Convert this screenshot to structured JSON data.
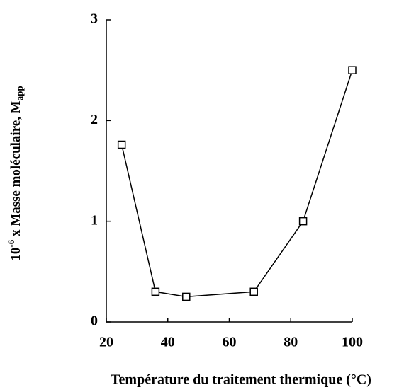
{
  "chart_data": {
    "type": "line",
    "x_label": "Température du traitement thermique (°C)",
    "y_label": [
      "10",
      "-6",
      " x Masse moléculaire, M",
      "app"
    ],
    "x": [
      25,
      36,
      46,
      68,
      84,
      100
    ],
    "series": [
      {
        "values": [
          1.76,
          0.3,
          0.25,
          0.3,
          1.0,
          2.5
        ],
        "color": "#000000"
      }
    ],
    "xlim": [
      20,
      100
    ],
    "xticks": [
      20,
      40,
      60,
      80,
      100
    ],
    "ylim": [
      0,
      3
    ],
    "yticks": [
      0,
      1,
      2,
      3
    ],
    "marker": "square"
  }
}
